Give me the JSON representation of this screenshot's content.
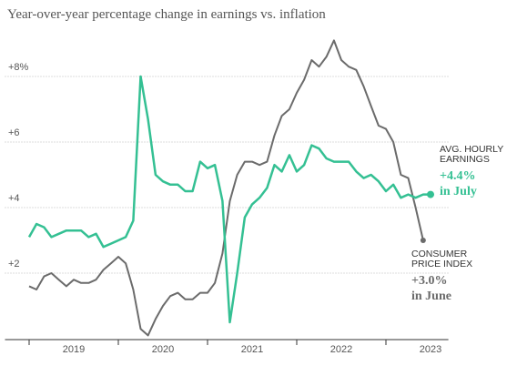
{
  "chart_data": {
    "type": "line",
    "title": "Year-over-year percentage change in earnings vs. inflation",
    "x": [
      2019,
      2019.083,
      2019.167,
      2019.25,
      2019.333,
      2019.417,
      2019.5,
      2019.583,
      2019.667,
      2019.75,
      2019.833,
      2019.917,
      2020,
      2020.083,
      2020.167,
      2020.25,
      2020.333,
      2020.417,
      2020.5,
      2020.583,
      2020.667,
      2020.75,
      2020.833,
      2020.917,
      2021,
      2021.083,
      2021.167,
      2021.25,
      2021.333,
      2021.417,
      2021.5,
      2021.583,
      2021.667,
      2021.75,
      2021.833,
      2021.917,
      2022,
      2022.083,
      2022.167,
      2022.25,
      2022.333,
      2022.417,
      2022.5,
      2022.583,
      2022.667,
      2022.75,
      2022.833,
      2022.917,
      2023,
      2023.083,
      2023.167,
      2023.25,
      2023.333,
      2023.417,
      2023.5
    ],
    "series": [
      {
        "name": "Average hourly earnings",
        "color": "#34c093",
        "values": [
          3.1,
          3.5,
          3.4,
          3.1,
          3.2,
          3.3,
          3.3,
          3.3,
          3.1,
          3.2,
          2.8,
          2.9,
          3.0,
          3.1,
          3.6,
          8.0,
          6.7,
          5.0,
          4.8,
          4.7,
          4.7,
          4.5,
          4.5,
          5.4,
          5.2,
          5.3,
          4.2,
          0.5,
          2.0,
          3.7,
          4.1,
          4.3,
          4.6,
          5.3,
          5.1,
          5.6,
          5.1,
          5.3,
          5.9,
          5.8,
          5.5,
          5.4,
          5.4,
          5.4,
          5.1,
          4.9,
          5.0,
          4.8,
          4.5,
          4.7,
          4.3,
          4.4,
          4.3,
          4.4,
          4.4
        ]
      },
      {
        "name": "Consumer price index",
        "color": "#6b6b6b",
        "values": [
          1.6,
          1.5,
          1.9,
          2.0,
          1.8,
          1.6,
          1.8,
          1.7,
          1.7,
          1.8,
          2.1,
          2.3,
          2.5,
          2.3,
          1.5,
          0.3,
          0.1,
          0.6,
          1.0,
          1.3,
          1.4,
          1.2,
          1.2,
          1.4,
          1.4,
          1.7,
          2.6,
          4.2,
          5.0,
          5.4,
          5.4,
          5.3,
          5.4,
          6.2,
          6.8,
          7.0,
          7.5,
          7.9,
          8.5,
          8.3,
          8.6,
          9.1,
          8.5,
          8.3,
          8.2,
          7.7,
          7.1,
          6.5,
          6.4,
          6.0,
          5.0,
          4.9,
          4.0,
          3.0,
          null
        ]
      }
    ],
    "annotations": [
      {
        "lines": [
          "AVG. HOURLY",
          "EARNINGS"
        ],
        "value": "+4.4%",
        "period": "in July"
      },
      {
        "lines": [
          "CONSUMER",
          "PRICE INDEX"
        ],
        "value": "+3.0%",
        "period": "in June"
      }
    ],
    "xlim": [
      2018.75,
      2023.7
    ],
    "xticks": [
      2019,
      2020,
      2021,
      2022,
      2023
    ],
    "ylim": [
      0,
      9.5
    ],
    "yticks": [
      {
        "value": 2,
        "label": "+2"
      },
      {
        "value": 4,
        "label": "+4"
      },
      {
        "value": 6,
        "label": "+6"
      },
      {
        "value": 8,
        "label": "+8%"
      }
    ],
    "grid": true
  }
}
